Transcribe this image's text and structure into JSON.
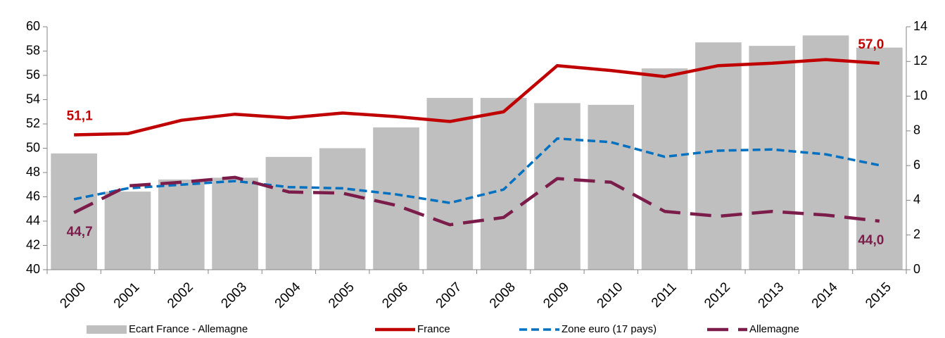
{
  "chart_data": {
    "type": "bar-line",
    "categories": [
      "2000",
      "2001",
      "2002",
      "2003",
      "2004",
      "2005",
      "2006",
      "2007",
      "2008",
      "2009",
      "2010",
      "2011",
      "2012",
      "2013",
      "2014",
      "2015"
    ],
    "series": [
      {
        "name": "Ecart France - Allemagne",
        "type": "bar",
        "axis": "y2",
        "color": "#bfbfbf",
        "values": [
          6.7,
          4.5,
          5.2,
          5.3,
          6.5,
          7.0,
          8.2,
          9.9,
          9.9,
          9.6,
          9.5,
          11.6,
          13.1,
          12.9,
          13.5,
          12.8
        ]
      },
      {
        "name": "France",
        "type": "line",
        "axis": "y",
        "color": "#c00000",
        "dash": "solid",
        "values": [
          51.1,
          51.2,
          52.3,
          52.8,
          52.5,
          52.9,
          52.6,
          52.2,
          53.0,
          56.8,
          56.4,
          55.9,
          56.8,
          57.0,
          57.3,
          57.0
        ],
        "value_labels": [
          "51,1",
          null,
          null,
          null,
          null,
          null,
          null,
          null,
          null,
          null,
          null,
          null,
          null,
          null,
          null,
          "57,0"
        ]
      },
      {
        "name": "Zone euro (17 pays)",
        "type": "line",
        "axis": "y",
        "color": "#0070c0",
        "dash": "short",
        "values": [
          45.8,
          46.7,
          47.0,
          47.3,
          46.8,
          46.7,
          46.2,
          45.5,
          46.6,
          50.8,
          50.5,
          49.3,
          49.8,
          49.9,
          49.5,
          48.6
        ]
      },
      {
        "name": "Allemagne",
        "type": "line",
        "axis": "y",
        "color": "#7b1c4a",
        "dash": "long",
        "values": [
          44.7,
          46.9,
          47.2,
          47.6,
          46.4,
          46.3,
          45.3,
          43.7,
          44.3,
          47.5,
          47.2,
          44.8,
          44.4,
          44.8,
          44.5,
          44.0
        ],
        "value_labels": [
          "44,7",
          null,
          null,
          null,
          null,
          null,
          null,
          null,
          null,
          null,
          null,
          null,
          null,
          null,
          null,
          "44,0"
        ]
      }
    ],
    "ylim": [
      40,
      60
    ],
    "yticks": [
      40,
      42,
      44,
      46,
      48,
      50,
      52,
      54,
      56,
      58,
      60
    ],
    "y2lim": [
      0,
      14
    ],
    "y2ticks": [
      0,
      2,
      4,
      6,
      8,
      10,
      12,
      14
    ],
    "grid": false,
    "legend": "bottom"
  }
}
